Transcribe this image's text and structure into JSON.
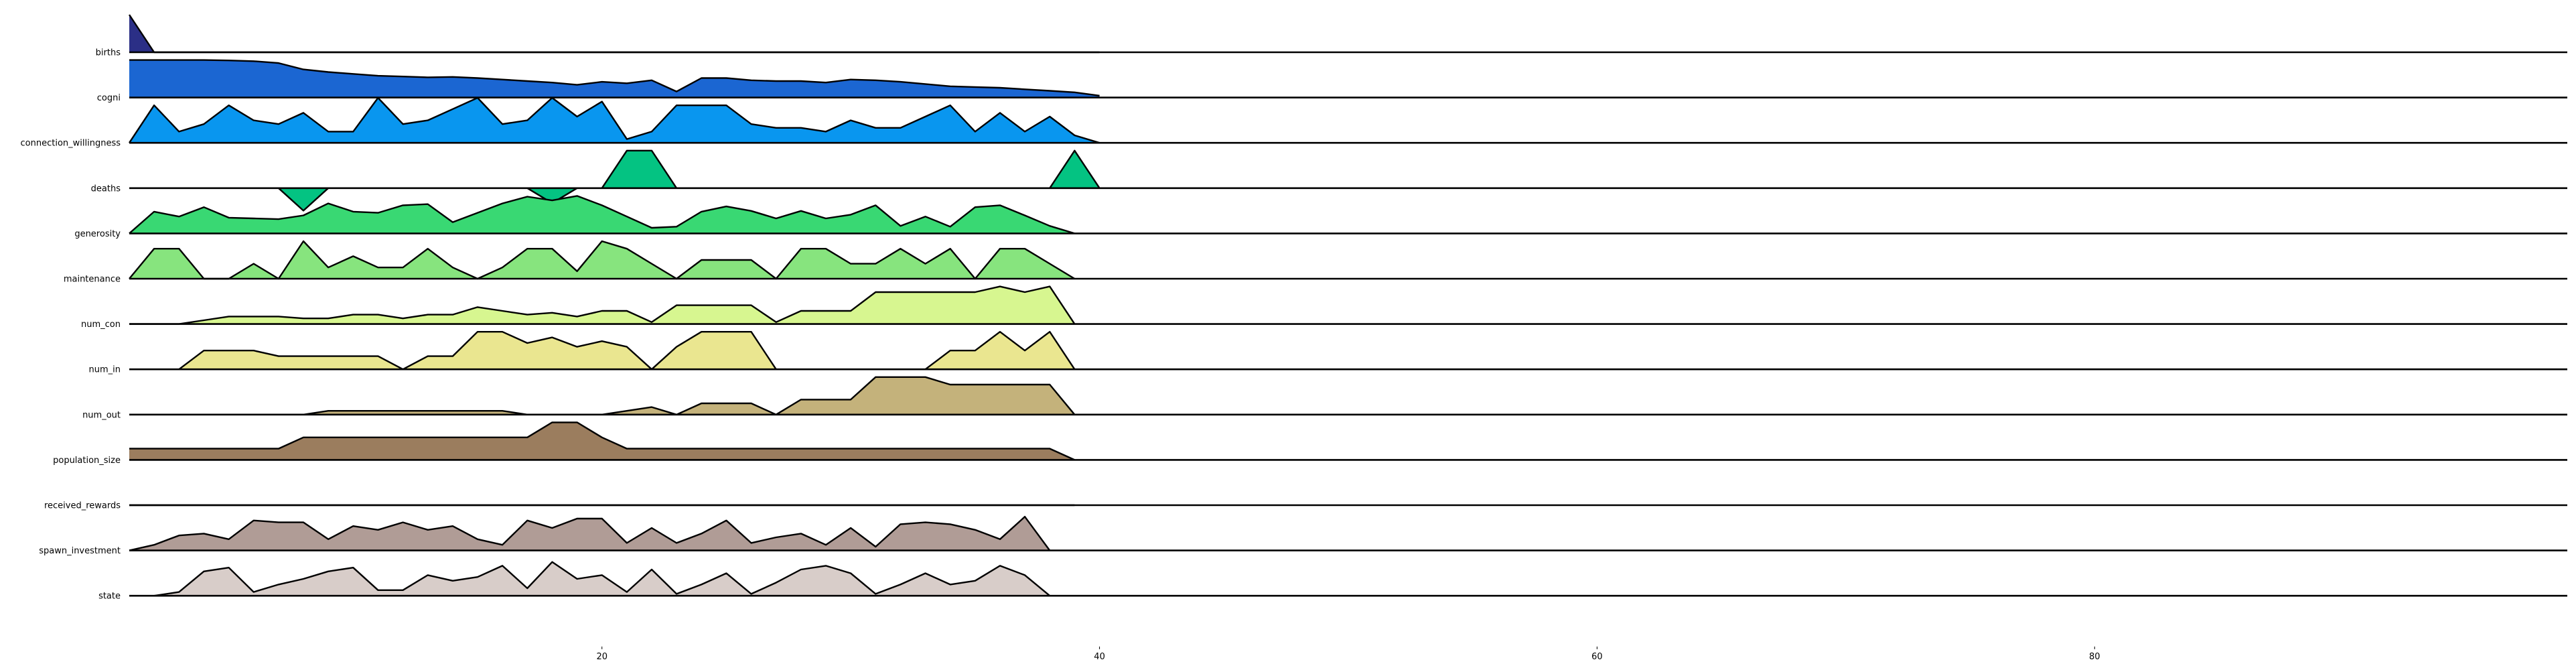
{
  "chart_data": {
    "type": "area",
    "subtype": "ridgeline",
    "title": "",
    "xlabel": "",
    "ylabel": "",
    "xlim": [
      0,
      99
    ],
    "x_ticks": [
      20,
      40,
      60,
      80
    ],
    "x_tick_labels": [
      "20",
      "40",
      "60",
      "80"
    ],
    "grid": false,
    "legend": "none",
    "series": [
      {
        "name": "births",
        "color": "#2b2f86",
        "values": [
          1,
          0,
          0,
          0,
          0,
          0,
          0,
          0,
          0,
          0,
          0,
          0,
          0,
          0,
          0,
          0,
          0,
          0,
          0,
          0,
          0,
          0,
          0,
          0,
          0,
          0,
          0,
          0,
          0,
          0,
          0,
          0,
          0,
          0,
          0,
          0,
          0,
          0,
          0,
          0
        ]
      },
      {
        "name": "cogni",
        "color": "#1b66d2",
        "values": [
          1.0,
          1.0,
          1.0,
          1.0,
          0.99,
          0.97,
          0.92,
          0.75,
          0.68,
          0.63,
          0.58,
          0.56,
          0.54,
          0.55,
          0.52,
          0.48,
          0.44,
          0.4,
          0.34,
          0.42,
          0.38,
          0.46,
          0.16,
          0.52,
          0.52,
          0.46,
          0.44,
          0.44,
          0.4,
          0.48,
          0.46,
          0.42,
          0.36,
          0.3,
          0.28,
          0.26,
          0.22,
          0.18,
          0.14,
          0.05
        ]
      },
      {
        "name": "connection_willingness",
        "color": "#0996ef",
        "values": [
          0,
          1.0,
          0.3,
          0.5,
          1.0,
          0.6,
          0.5,
          0.8,
          0.3,
          0.3,
          1.2,
          0.5,
          0.6,
          0.9,
          1.2,
          0.5,
          0.6,
          1.2,
          0.7,
          1.1,
          0.1,
          0.3,
          1.0,
          1.0,
          1.0,
          0.5,
          0.4,
          0.4,
          0.3,
          0.6,
          0.4,
          0.4,
          0.7,
          1.0,
          0.3,
          0.8,
          0.3,
          0.7,
          0.2,
          0
        ]
      },
      {
        "name": "deaths",
        "color": "#04c382",
        "values": [
          0,
          0,
          0,
          0,
          0,
          0,
          0,
          -0.6,
          0,
          0,
          0,
          0,
          0,
          0,
          0,
          0,
          0,
          -0.4,
          0,
          0,
          1,
          1,
          0,
          0,
          0,
          0,
          0,
          0,
          0,
          0,
          0,
          0,
          0,
          0,
          0,
          0,
          0,
          0,
          1,
          0
        ]
      },
      {
        "name": "generosity",
        "color": "#39d873",
        "values": [
          0,
          0.58,
          0.45,
          0.7,
          0.42,
          0.4,
          0.38,
          0.48,
          0.8,
          0.58,
          0.55,
          0.75,
          0.78,
          0.3,
          0.55,
          0.8,
          0.98,
          0.88,
          1.0,
          0.75,
          0.45,
          0.15,
          0.18,
          0.58,
          0.72,
          0.6,
          0.4,
          0.6,
          0.4,
          0.5,
          0.75,
          0.2,
          0.45,
          0.18,
          0.7,
          0.75,
          0.48,
          0.2,
          0
        ]
      },
      {
        "name": "maintenance",
        "color": "#87e47e",
        "values": [
          0,
          0.8,
          0.8,
          0,
          0,
          0.4,
          0,
          1.0,
          0.3,
          0.6,
          0.3,
          0.3,
          0.8,
          0.3,
          0,
          0.3,
          0.8,
          0.8,
          0.2,
          1.0,
          0.8,
          0.4,
          0,
          0.5,
          0.5,
          0.5,
          0,
          0.8,
          0.8,
          0.4,
          0.4,
          0.8,
          0.4,
          0.8,
          0,
          0.8,
          0.8,
          0.4,
          0
        ]
      },
      {
        "name": "num_con",
        "color": "#d7f690",
        "values": [
          0,
          0,
          0,
          0.1,
          0.2,
          0.2,
          0.2,
          0.15,
          0.15,
          0.25,
          0.25,
          0.15,
          0.25,
          0.25,
          0.45,
          0.35,
          0.25,
          0.3,
          0.2,
          0.35,
          0.35,
          0.05,
          0.5,
          0.5,
          0.5,
          0.5,
          0.05,
          0.35,
          0.35,
          0.35,
          0.85,
          0.85,
          0.85,
          0.85,
          0.85,
          1.0,
          0.85,
          1.0,
          0
        ]
      },
      {
        "name": "num_in",
        "color": "#eae690",
        "values": [
          0,
          0,
          0,
          0.5,
          0.5,
          0.5,
          0.35,
          0.35,
          0.35,
          0.35,
          0.35,
          0,
          0.35,
          0.35,
          1.0,
          1.0,
          0.7,
          0.85,
          0.6,
          0.75,
          0.6,
          0,
          0.6,
          1.0,
          1.0,
          1.0,
          0,
          0,
          0,
          0,
          0,
          0,
          0,
          0.5,
          0.5,
          1.0,
          0.5,
          1.0,
          0
        ]
      },
      {
        "name": "num_out",
        "color": "#c4b27b",
        "values": [
          0,
          0,
          0,
          0,
          0,
          0,
          0,
          0,
          0.1,
          0.1,
          0.1,
          0.1,
          0.1,
          0.1,
          0.1,
          0.1,
          0,
          0,
          0,
          0,
          0.1,
          0.2,
          0,
          0.3,
          0.3,
          0.3,
          0,
          0.4,
          0.4,
          0.4,
          1.0,
          1.0,
          1.0,
          0.8,
          0.8,
          0.8,
          0.8,
          0.8,
          0
        ]
      },
      {
        "name": "population_size",
        "color": "#9b7d5e",
        "values": [
          0.3,
          0.3,
          0.3,
          0.3,
          0.3,
          0.3,
          0.3,
          0.6,
          0.6,
          0.6,
          0.6,
          0.6,
          0.6,
          0.6,
          0.6,
          0.6,
          0.6,
          1.0,
          1.0,
          0.6,
          0.3,
          0.3,
          0.3,
          0.3,
          0.3,
          0.3,
          0.3,
          0.3,
          0.3,
          0.3,
          0.3,
          0.3,
          0.3,
          0.3,
          0.3,
          0.3,
          0.3,
          0.3,
          0
        ]
      },
      {
        "name": "received_rewards",
        "color": "#b4a096",
        "values": [
          0,
          0,
          0,
          0,
          0,
          0,
          0,
          0,
          0,
          0,
          0,
          0,
          0,
          0,
          0,
          0,
          0,
          0,
          0,
          0,
          0,
          0,
          0,
          0,
          0,
          0,
          0,
          0,
          0,
          0,
          0,
          0,
          0,
          0,
          0,
          0,
          0,
          0,
          0
        ]
      },
      {
        "name": "spawn_investment",
        "color": "#b09c96",
        "values": [
          0,
          0.15,
          0.4,
          0.45,
          0.3,
          0.8,
          0.75,
          0.75,
          0.3,
          0.65,
          0.55,
          0.75,
          0.55,
          0.65,
          0.3,
          0.15,
          0.8,
          0.6,
          0.85,
          0.85,
          0.2,
          0.6,
          0.2,
          0.45,
          0.8,
          0.2,
          0.35,
          0.45,
          0.15,
          0.6,
          0.1,
          0.7,
          0.75,
          0.7,
          0.55,
          0.3,
          0.9,
          0
        ]
      },
      {
        "name": "state",
        "color": "#d8cdc9",
        "values": [
          0,
          0,
          0.1,
          0.65,
          0.75,
          0.1,
          0.3,
          0.45,
          0.65,
          0.75,
          0.15,
          0.15,
          0.55,
          0.4,
          0.5,
          0.8,
          0.2,
          0.9,
          0.45,
          0.55,
          0.1,
          0.7,
          0.05,
          0.3,
          0.6,
          0.05,
          0.35,
          0.7,
          0.8,
          0.6,
          0.05,
          0.3,
          0.6,
          0.3,
          0.4,
          0.8,
          0.55,
          0
        ]
      }
    ]
  }
}
